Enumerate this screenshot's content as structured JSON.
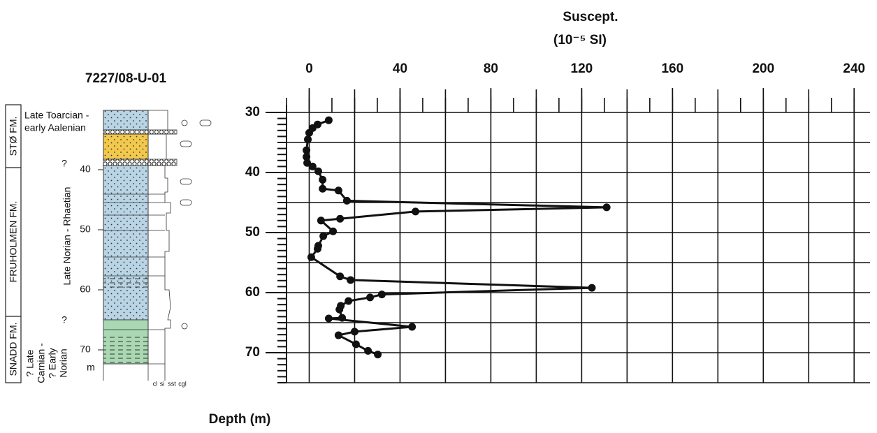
{
  "chart_data": {
    "type": "line",
    "title": "Suscept.",
    "subtitle": "(10⁻⁵ SI)",
    "y_label": "Depth (m)",
    "x": [
      8.6,
      3.7,
      1.5,
      0,
      -0.6,
      -1.2,
      -1.2,
      -0.9,
      1.5,
      4,
      5.9,
      5.9,
      12.9,
      16.6,
      131,
      46.8,
      13.6,
      5.2,
      10.5,
      6.2,
      4,
      3.7,
      0.9,
      13.6,
      18.2,
      124.5,
      32,
      26.8,
      17.3,
      13.9,
      13.3,
      14.5,
      8.6,
      45.3,
      20,
      12.9,
      20.6,
      25.9,
      30.2
    ],
    "values": [
      31.3,
      32,
      32.6,
      33.4,
      34.5,
      36.3,
      37.4,
      38.4,
      39,
      39.8,
      41.2,
      42.7,
      43,
      44.7,
      45.8,
      46.5,
      47.7,
      48,
      49.8,
      50.6,
      52.2,
      52.7,
      54.1,
      57.3,
      57.9,
      59.2,
      60.3,
      60.8,
      61.4,
      62.2,
      62.8,
      64.2,
      64.3,
      65.7,
      66.5,
      67.1,
      68.6,
      69.7,
      70.3
    ],
    "color": "#111111",
    "xlim": [
      -10,
      247
    ],
    "xticks": [
      0,
      40,
      80,
      120,
      160,
      200,
      240
    ],
    "x_grid_step": 20,
    "x_minor_step": 10,
    "ylim": [
      30,
      75
    ],
    "yticks": [
      30,
      40,
      50,
      60,
      70
    ],
    "y_grid_step": 5,
    "y_minor_step": 1,
    "y_inverted": true,
    "grid": true
  },
  "log": {
    "title": "7227/08-U-01",
    "formations": [
      "STØ FM.",
      "FRUHOLMEN FM.",
      "SNADD FM."
    ],
    "ages": [
      "Late Toarcian -",
      "early Aalenian",
      "Late Norian - Rhaetian",
      "? Late",
      "Carnian -",
      "? Early",
      "Norian"
    ],
    "queries": [
      "?",
      "?"
    ],
    "depths": [
      40,
      50,
      60,
      70
    ],
    "depth_unit": "m",
    "grain_sizes": [
      "cl",
      "si",
      "sst",
      "cgl"
    ]
  }
}
